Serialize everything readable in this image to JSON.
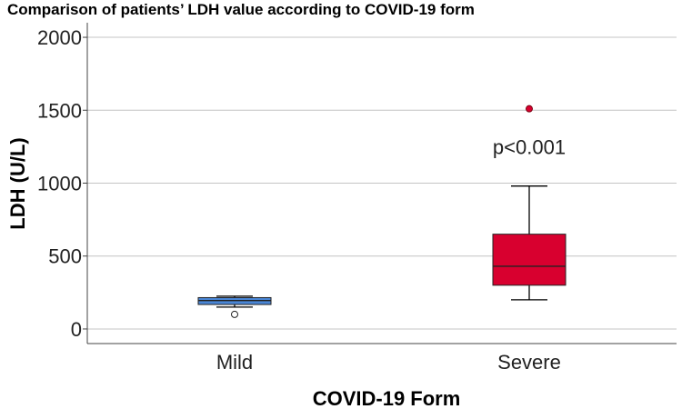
{
  "chart_data": {
    "type": "box",
    "title": "Comparison of patients’ LDH value according to COVID-19 form",
    "xlabel": "COVID-19 Form",
    "ylabel": "LDH (U/L)",
    "ylim": [
      -100,
      2100
    ],
    "yticks": [
      0,
      500,
      1000,
      1500,
      2000
    ],
    "grid": true,
    "categories": [
      "Mild",
      "Severe"
    ],
    "series": [
      {
        "name": "Mild",
        "color": "#4a86d6",
        "whisker_low": 150,
        "q1": 168,
        "median": 195,
        "q3": 215,
        "whisker_high": 225,
        "outliers": [
          {
            "value": 100,
            "style": "open"
          }
        ]
      },
      {
        "name": "Severe",
        "color": "#d8002f",
        "whisker_low": 200,
        "q1": 300,
        "median": 430,
        "q3": 650,
        "whisker_high": 980,
        "outliers": [
          {
            "value": 1510,
            "style": "filled"
          }
        ]
      }
    ],
    "annotation": {
      "text": "p<0.001",
      "category": "Severe",
      "y": 1250
    }
  }
}
